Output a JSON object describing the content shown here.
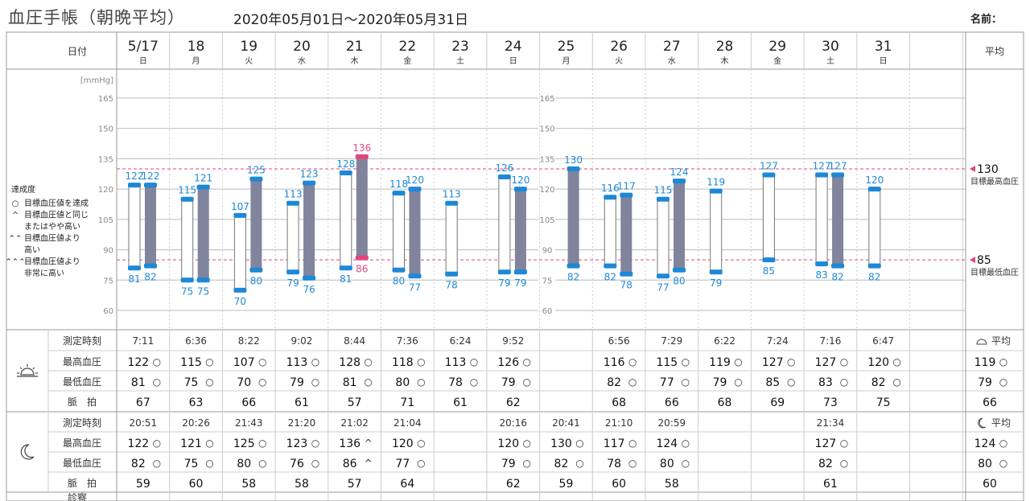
{
  "header": {
    "title": "血圧手帳（朝晩平均）",
    "range": "2020年05月01日～2020年05月31日",
    "name_label": "名前："
  },
  "table": {
    "date_col": "日付",
    "avg_col": "平均",
    "row_labels": {
      "time": "測定時刻",
      "sys": "最高血圧",
      "dia": "最低血圧",
      "pulse": "脈　拍"
    },
    "avg_label": "平均",
    "next_row_label": "診察"
  },
  "legend": {
    "title": "達成度",
    "items": [
      {
        "symbol": "○",
        "label": "目標血圧値を達成"
      },
      {
        "symbol": "^",
        "label": "目標血圧値と同じ"
      },
      {
        "symbol": "",
        "label": "またはやや高い"
      },
      {
        "symbol": "⌃⌃",
        "label": "目標血圧値より"
      },
      {
        "symbol": "",
        "label": "高い"
      },
      {
        "symbol": "⌃⌃⌃",
        "label": "目標血圧値より"
      },
      {
        "symbol": "",
        "label": "非常に高い"
      }
    ]
  },
  "targets": {
    "sys": {
      "value": "130",
      "label": "目標最高血圧"
    },
    "dia": {
      "value": "85",
      "label": "目標最低血圧"
    }
  },
  "colors": {
    "morning_bar": "#ffffff",
    "evening_bar": "#80849c",
    "cap": "#1e88d6",
    "pink": "#e2457d",
    "grid": "#bbbbbb",
    "weekend": "#e2457d"
  },
  "chart_data": {
    "type": "bar",
    "ylabel": "[mmHg]",
    "ylim": [
      55,
      170
    ],
    "yticks": [
      60,
      75,
      90,
      105,
      120,
      135,
      150,
      165
    ],
    "days": [
      {
        "date": "5/17",
        "dow": "日",
        "weekend": true,
        "am": {
          "time": "7:11",
          "sys": 122,
          "dia": 81,
          "pulse": 67,
          "sys_mark": "○",
          "dia_mark": "○"
        },
        "pm": {
          "time": "20:51",
          "sys": 122,
          "dia": 82,
          "pulse": 59,
          "sys_mark": "○",
          "dia_mark": "○"
        }
      },
      {
        "date": "18",
        "dow": "月",
        "weekend": false,
        "am": {
          "time": "6:36",
          "sys": 115,
          "dia": 75,
          "pulse": 63,
          "sys_mark": "○",
          "dia_mark": "○"
        },
        "pm": {
          "time": "20:26",
          "sys": 121,
          "dia": 75,
          "pulse": 60,
          "sys_mark": "○",
          "dia_mark": "○"
        }
      },
      {
        "date": "19",
        "dow": "火",
        "weekend": false,
        "am": {
          "time": "8:22",
          "sys": 107,
          "dia": 70,
          "pulse": 66,
          "sys_mark": "○",
          "dia_mark": "○"
        },
        "pm": {
          "time": "21:43",
          "sys": 125,
          "dia": 80,
          "pulse": 58,
          "sys_mark": "○",
          "dia_mark": "○"
        }
      },
      {
        "date": "20",
        "dow": "水",
        "weekend": false,
        "am": {
          "time": "9:02",
          "sys": 113,
          "dia": 79,
          "pulse": 61,
          "sys_mark": "○",
          "dia_mark": "○"
        },
        "pm": {
          "time": "21:20",
          "sys": 123,
          "dia": 76,
          "pulse": 58,
          "sys_mark": "○",
          "dia_mark": "○"
        }
      },
      {
        "date": "21",
        "dow": "木",
        "weekend": false,
        "am": {
          "time": "8:44",
          "sys": 128,
          "dia": 81,
          "pulse": 57,
          "sys_mark": "○",
          "dia_mark": "○"
        },
        "pm": {
          "time": "21:02",
          "sys": 136,
          "dia": 86,
          "pulse": 57,
          "sys_mark": "^",
          "dia_mark": "^"
        }
      },
      {
        "date": "22",
        "dow": "金",
        "weekend": false,
        "am": {
          "time": "7:36",
          "sys": 118,
          "dia": 80,
          "pulse": 71,
          "sys_mark": "○",
          "dia_mark": "○"
        },
        "pm": {
          "time": "21:04",
          "sys": 120,
          "dia": 77,
          "pulse": 64,
          "sys_mark": "○",
          "dia_mark": "○"
        }
      },
      {
        "date": "23",
        "dow": "土",
        "weekend": false,
        "am": {
          "time": "6:24",
          "sys": 113,
          "dia": 78,
          "pulse": 61,
          "sys_mark": "○",
          "dia_mark": "○"
        },
        "pm": null
      },
      {
        "date": "24",
        "dow": "日",
        "weekend": true,
        "am": {
          "time": "9:52",
          "sys": 126,
          "dia": 79,
          "pulse": 62,
          "sys_mark": "○",
          "dia_mark": "○"
        },
        "pm": {
          "time": "20:16",
          "sys": 120,
          "dia": 79,
          "pulse": 62,
          "sys_mark": "○",
          "dia_mark": "○"
        }
      },
      {
        "date": "25",
        "dow": "月",
        "weekend": false,
        "am": null,
        "pm": {
          "time": "20:41",
          "sys": 130,
          "dia": 82,
          "pulse": 59,
          "sys_mark": "○",
          "dia_mark": "○"
        }
      },
      {
        "date": "26",
        "dow": "火",
        "weekend": false,
        "am": {
          "time": "6:56",
          "sys": 116,
          "dia": 82,
          "pulse": 68,
          "sys_mark": "○",
          "dia_mark": "○"
        },
        "pm": {
          "time": "21:10",
          "sys": 117,
          "dia": 78,
          "pulse": 60,
          "sys_mark": "○",
          "dia_mark": "○"
        }
      },
      {
        "date": "27",
        "dow": "水",
        "weekend": false,
        "am": {
          "time": "7:29",
          "sys": 115,
          "dia": 77,
          "pulse": 66,
          "sys_mark": "○",
          "dia_mark": "○"
        },
        "pm": {
          "time": "20:59",
          "sys": 124,
          "dia": 80,
          "pulse": 58,
          "sys_mark": "○",
          "dia_mark": "○"
        }
      },
      {
        "date": "28",
        "dow": "木",
        "weekend": false,
        "am": {
          "time": "6:22",
          "sys": 119,
          "dia": 79,
          "pulse": 68,
          "sys_mark": "○",
          "dia_mark": "○"
        },
        "pm": null
      },
      {
        "date": "29",
        "dow": "金",
        "weekend": false,
        "am": {
          "time": "7:24",
          "sys": 127,
          "dia": 85,
          "pulse": 69,
          "sys_mark": "○",
          "dia_mark": "○"
        },
        "pm": null
      },
      {
        "date": "30",
        "dow": "土",
        "weekend": false,
        "am": {
          "time": "7:16",
          "sys": 127,
          "dia": 83,
          "pulse": 73,
          "sys_mark": "○",
          "dia_mark": "○"
        },
        "pm": {
          "time": "21:34",
          "sys": 127,
          "dia": 82,
          "pulse": 61,
          "sys_mark": "○",
          "dia_mark": "○"
        }
      },
      {
        "date": "31",
        "dow": "日",
        "weekend": true,
        "am": {
          "time": "6:47",
          "sys": 120,
          "dia": 82,
          "pulse": 75,
          "sys_mark": "○",
          "dia_mark": "○"
        },
        "pm": null
      }
    ],
    "average": {
      "am": {
        "sys": 119,
        "dia": 79,
        "pulse": 66,
        "sys_mark": "○",
        "dia_mark": "○"
      },
      "pm": {
        "sys": 124,
        "dia": 80,
        "pulse": 60,
        "sys_mark": "○",
        "dia_mark": "○"
      }
    }
  }
}
